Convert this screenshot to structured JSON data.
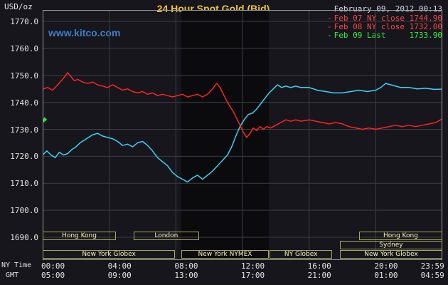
{
  "chart_data": {
    "type": "line",
    "title": "24 Hour Spot Gold (Bid)",
    "annotations": {
      "datetime": "February 09, 2012 00:13",
      "watermark": "www.kitco.com"
    },
    "legend": [
      {
        "marker": "-",
        "label": "Feb 07 NY close 1744.90",
        "color": "#ff4444"
      },
      {
        "marker": "-",
        "label": "Feb 08 NY close 1732.00",
        "color": "#ff4444"
      },
      {
        "marker": "-",
        "label": "Feb 09 Last     1733.90",
        "color": "#33ee44"
      }
    ],
    "y_axis": {
      "label": "USD/oz",
      "min": 1690,
      "max": 1770,
      "tick_step": 10,
      "tick_labels": [
        "1770.0",
        "1760.0",
        "1750.0",
        "1740.0",
        "1730.0",
        "1720.0",
        "1710.0",
        "1700.0",
        "1690.0"
      ]
    },
    "x_axis": {
      "label_ny": "NY Time",
      "label_gmt": "GMT",
      "range_hours": [
        0,
        24
      ],
      "ticks": [
        {
          "ny": "00:00",
          "gmt": "05:00",
          "h": 0
        },
        {
          "ny": "04:00",
          "gmt": "09:00",
          "h": 4
        },
        {
          "ny": "08:00",
          "gmt": "13:00",
          "h": 8
        },
        {
          "ny": "12:00",
          "gmt": "17:00",
          "h": 12
        },
        {
          "ny": "16:00",
          "gmt": "21:00",
          "h": 16
        },
        {
          "ny": "20:00",
          "gmt": "01:00",
          "h": 20
        },
        {
          "ny": "23:59",
          "gmt": "04:59",
          "h": 23.983,
          "align": "right"
        }
      ]
    },
    "highlight_band_hours": [
      8.33,
      13.58
    ],
    "colors": {
      "background": "#16161c",
      "band": "#0b0b0e",
      "grid": "#3c3c45",
      "border": "#9a9aa2",
      "title": "#f0c437",
      "watermark": "#3e7ec8",
      "axis_text": "#e4e4e4",
      "session_border": "#a8a858",
      "session_text": "#f6f6c0"
    },
    "series": [
      {
        "name": "Feb 07",
        "slug": "feb-07",
        "color": "#3dd2f5",
        "ny_close": 1744.9,
        "points": [
          [
            0,
            1720.5
          ],
          [
            0.25,
            1722
          ],
          [
            0.5,
            1720.5
          ],
          [
            0.75,
            1719.5
          ],
          [
            1,
            1721.5
          ],
          [
            1.25,
            1720.5
          ],
          [
            1.5,
            1721
          ],
          [
            1.75,
            1722.5
          ],
          [
            2,
            1723.5
          ],
          [
            2.25,
            1725
          ],
          [
            2.5,
            1726
          ],
          [
            2.75,
            1727
          ],
          [
            3,
            1728
          ],
          [
            3.3,
            1728.5
          ],
          [
            3.6,
            1727.5
          ],
          [
            3.9,
            1727
          ],
          [
            4.2,
            1726.5
          ],
          [
            4.5,
            1725.5
          ],
          [
            4.8,
            1724
          ],
          [
            5.1,
            1724.5
          ],
          [
            5.4,
            1723.5
          ],
          [
            5.7,
            1725
          ],
          [
            6,
            1725.5
          ],
          [
            6.3,
            1724
          ],
          [
            6.6,
            1722
          ],
          [
            6.9,
            1719.5
          ],
          [
            7.2,
            1718
          ],
          [
            7.5,
            1716.5
          ],
          [
            7.8,
            1714
          ],
          [
            8.1,
            1712.5
          ],
          [
            8.4,
            1711.5
          ],
          [
            8.7,
            1710.5
          ],
          [
            9,
            1712
          ],
          [
            9.3,
            1713
          ],
          [
            9.6,
            1711.5
          ],
          [
            9.9,
            1713
          ],
          [
            10.2,
            1714.5
          ],
          [
            10.5,
            1716.5
          ],
          [
            10.8,
            1718.5
          ],
          [
            11.1,
            1720.5
          ],
          [
            11.35,
            1723.5
          ],
          [
            11.6,
            1727.5
          ],
          [
            11.85,
            1731
          ],
          [
            12.1,
            1733.5
          ],
          [
            12.35,
            1735.5
          ],
          [
            12.6,
            1736
          ],
          [
            12.85,
            1737.5
          ],
          [
            13.1,
            1739.5
          ],
          [
            13.35,
            1741.5
          ],
          [
            13.6,
            1743.5
          ],
          [
            13.85,
            1745
          ],
          [
            14.1,
            1746.5
          ],
          [
            14.35,
            1745.5
          ],
          [
            14.6,
            1746
          ],
          [
            14.9,
            1745.5
          ],
          [
            15.2,
            1746
          ],
          [
            15.5,
            1745.5
          ],
          [
            16,
            1745.5
          ],
          [
            16.5,
            1744.5
          ],
          [
            17,
            1744
          ],
          [
            17.5,
            1743.5
          ],
          [
            18,
            1743.5
          ],
          [
            18.5,
            1744
          ],
          [
            19,
            1744.5
          ],
          [
            19.5,
            1744
          ],
          [
            20,
            1744.5
          ],
          [
            20.3,
            1745.5
          ],
          [
            20.6,
            1747
          ],
          [
            20.9,
            1746.5
          ],
          [
            21.2,
            1746
          ],
          [
            21.5,
            1745.5
          ],
          [
            22,
            1745.5
          ],
          [
            22.5,
            1745
          ],
          [
            23,
            1745.2
          ],
          [
            23.5,
            1744.8
          ],
          [
            23.98,
            1744.9
          ]
        ]
      },
      {
        "name": "Feb 08",
        "slug": "feb-08",
        "color": "#ff2222",
        "ny_close": 1732.0,
        "points": [
          [
            0,
            1744.9
          ],
          [
            0.3,
            1745.5
          ],
          [
            0.6,
            1744.5
          ],
          [
            0.9,
            1746.5
          ],
          [
            1.2,
            1748.5
          ],
          [
            1.5,
            1751
          ],
          [
            1.7,
            1749.5
          ],
          [
            1.9,
            1748
          ],
          [
            2.1,
            1748.5
          ],
          [
            2.4,
            1747.5
          ],
          [
            2.7,
            1747
          ],
          [
            3,
            1747.5
          ],
          [
            3.3,
            1746.5
          ],
          [
            3.6,
            1746
          ],
          [
            3.9,
            1745.5
          ],
          [
            4.2,
            1746.5
          ],
          [
            4.5,
            1745.5
          ],
          [
            4.8,
            1744.5
          ],
          [
            5.1,
            1745
          ],
          [
            5.4,
            1744
          ],
          [
            5.7,
            1743.5
          ],
          [
            6,
            1744
          ],
          [
            6.3,
            1743
          ],
          [
            6.6,
            1743.5
          ],
          [
            6.9,
            1742.5
          ],
          [
            7.2,
            1743
          ],
          [
            7.5,
            1742.5
          ],
          [
            7.8,
            1742
          ],
          [
            8.1,
            1742.5
          ],
          [
            8.4,
            1743
          ],
          [
            8.7,
            1742
          ],
          [
            9,
            1742.5
          ],
          [
            9.3,
            1743
          ],
          [
            9.6,
            1742
          ],
          [
            9.9,
            1743
          ],
          [
            10.2,
            1745
          ],
          [
            10.45,
            1747
          ],
          [
            10.65,
            1745.5
          ],
          [
            10.85,
            1743
          ],
          [
            11.05,
            1740.5
          ],
          [
            11.25,
            1738.5
          ],
          [
            11.45,
            1736.5
          ],
          [
            11.65,
            1734
          ],
          [
            11.85,
            1731.5
          ],
          [
            12.05,
            1729
          ],
          [
            12.25,
            1727
          ],
          [
            12.45,
            1728.5
          ],
          [
            12.65,
            1730.5
          ],
          [
            12.85,
            1729.5
          ],
          [
            13.05,
            1731
          ],
          [
            13.25,
            1730
          ],
          [
            13.45,
            1731
          ],
          [
            13.7,
            1730.5
          ],
          [
            14,
            1731.5
          ],
          [
            14.3,
            1732.5
          ],
          [
            14.6,
            1733.5
          ],
          [
            14.9,
            1733
          ],
          [
            15.2,
            1733.5
          ],
          [
            15.5,
            1733
          ],
          [
            16,
            1733.5
          ],
          [
            16.4,
            1733
          ],
          [
            16.8,
            1732.5
          ],
          [
            17.2,
            1732
          ],
          [
            17.6,
            1732.5
          ],
          [
            18,
            1732
          ],
          [
            18.4,
            1731
          ],
          [
            18.8,
            1730.5
          ],
          [
            19.2,
            1730
          ],
          [
            19.6,
            1730.5
          ],
          [
            20,
            1730
          ],
          [
            20.4,
            1730.5
          ],
          [
            20.8,
            1731
          ],
          [
            21.2,
            1731.5
          ],
          [
            21.6,
            1731
          ],
          [
            22,
            1731.5
          ],
          [
            22.4,
            1731
          ],
          [
            22.8,
            1731.5
          ],
          [
            23.2,
            1732
          ],
          [
            23.6,
            1732.5
          ],
          [
            23.98,
            1733.8
          ]
        ]
      },
      {
        "name": "Feb 09",
        "slug": "feb-09",
        "color": "#22ee44",
        "last": 1733.9,
        "points": [
          [
            0,
            1732.5
          ],
          [
            0.04,
            1734
          ],
          [
            0.08,
            1732.8
          ],
          [
            0.13,
            1734.3
          ],
          [
            0.17,
            1733.2
          ],
          [
            0.22,
            1733.9
          ]
        ]
      }
    ],
    "sessions": [
      {
        "label": "Hong Kong",
        "row": 0,
        "start_h": 0,
        "end_h": 4.4,
        "slug": "hong-kong-1"
      },
      {
        "label": "London",
        "row": 0,
        "start_h": 5.45,
        "end_h": 9.4,
        "slug": "london"
      },
      {
        "label": "Hong Kong",
        "row": 0,
        "start_h": 19.0,
        "end_h": 24,
        "slug": "hong-kong-2"
      },
      {
        "label": "Sydney",
        "row": 1,
        "start_h": 17.85,
        "end_h": 24,
        "slug": "sydney"
      },
      {
        "label": "New York Globex",
        "row": 2,
        "start_h": 0,
        "end_h": 7.95,
        "slug": "new-york-globex-1"
      },
      {
        "label": "New York NYMEX",
        "row": 2,
        "start_h": 8.33,
        "end_h": 13.58,
        "slug": "new-york-nymex"
      },
      {
        "label": "NY Globex",
        "row": 2,
        "start_h": 13.62,
        "end_h": 17.4,
        "slug": "ny-globex"
      },
      {
        "label": "New York Globex",
        "row": 2,
        "start_h": 17.85,
        "end_h": 24,
        "slug": "new-york-globex-2"
      }
    ]
  }
}
